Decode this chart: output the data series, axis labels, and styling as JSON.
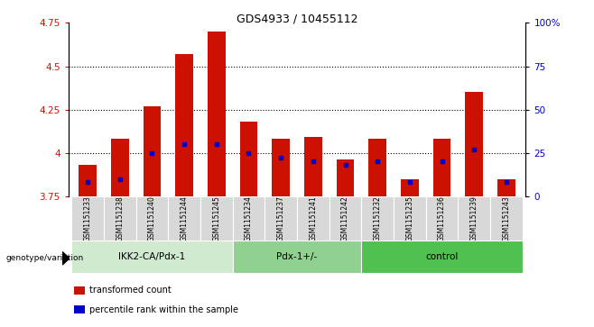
{
  "title": "GDS4933 / 10455112",
  "samples": [
    "GSM1151233",
    "GSM1151238",
    "GSM1151240",
    "GSM1151244",
    "GSM1151245",
    "GSM1151234",
    "GSM1151237",
    "GSM1151241",
    "GSM1151242",
    "GSM1151232",
    "GSM1151235",
    "GSM1151236",
    "GSM1151239",
    "GSM1151243"
  ],
  "transformed_count": [
    3.93,
    4.08,
    4.27,
    4.57,
    4.7,
    4.18,
    4.08,
    4.09,
    3.96,
    4.08,
    3.85,
    4.08,
    4.35,
    3.85
  ],
  "percentile_rank": [
    8,
    10,
    25,
    30,
    30,
    25,
    22,
    20,
    18,
    20,
    8,
    20,
    27,
    8
  ],
  "groups": [
    {
      "label": "IKK2-CA/Pdx-1",
      "start": 0,
      "end": 5,
      "color": "#d0ead0"
    },
    {
      "label": "Pdx-1+/-",
      "start": 5,
      "end": 9,
      "color": "#90d090"
    },
    {
      "label": "control",
      "start": 9,
      "end": 14,
      "color": "#50c050"
    }
  ],
  "ylim_left": [
    3.75,
    4.75
  ],
  "ylim_right": [
    0,
    100
  ],
  "yticks_left": [
    3.75,
    4.0,
    4.25,
    4.5,
    4.75
  ],
  "yticks_right": [
    0,
    25,
    50,
    75,
    100
  ],
  "ytick_labels_right": [
    "0",
    "25",
    "50",
    "75",
    "100%"
  ],
  "bar_color": "#cc1100",
  "dot_color": "#0000cc",
  "bar_bottom": 3.75,
  "legend_items": [
    {
      "label": "transformed count",
      "color": "#cc1100"
    },
    {
      "label": "percentile rank within the sample",
      "color": "#0000cc"
    }
  ],
  "genotype_label": "genotype/variation"
}
